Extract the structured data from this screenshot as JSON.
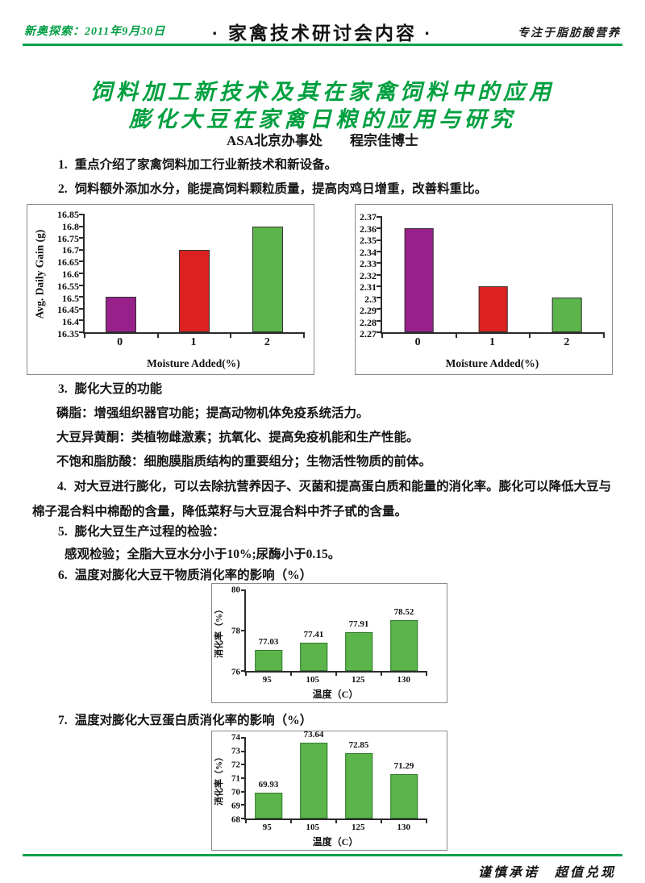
{
  "header": {
    "left": "新奥探索：2011年9月30日",
    "center": "· 家禽技术研讨会内容 ·",
    "right": "专注于脂肪酸营养"
  },
  "title": {
    "line1": "饲料加工新技术及其在家禽饲料中的应用",
    "line2": "膨化大豆在家禽日粮的应用与研究",
    "byline": "ASA北京办事处　　程宗佳博士"
  },
  "items": {
    "i1_num": "1.",
    "i1": "重点介绍了家禽饲料加工行业新技术和新设备。",
    "i2_num": "2.",
    "i2": "饲料额外添加水分，能提高饲料颗粒质量，提高肉鸡日增重，改善料重比。",
    "i3_num": "3.",
    "i3": "膨化大豆的功能",
    "i3_sub1": "磷脂：增强组织器官功能；提高动物机体免疫系统活力。",
    "i3_sub2": "大豆异黄酮：类植物雌激素；抗氧化、提高免疫机能和生产性能。",
    "i3_sub3": "不饱和脂肪酸：细胞膜脂质结构的重要组分；生物活性物质的前体。",
    "i4_num": "4.",
    "i4": "对大豆进行膨化，可以去除抗营养因子、灭菌和提高蛋白质和能量的消化率。膨化可以降低大豆与棉子混合料中棉酚的含量，降低菜籽与大豆混合料中芥子甙的含量。",
    "i5_num": "5.",
    "i5": "膨化大豆生产过程的检验：",
    "i5_sub": "感观检验；全脂大豆水分小于10%;尿酶小于0.15。",
    "i6_num": "6.",
    "i6": "温度对膨化大豆干物质消化率的影响（%）",
    "i7_num": "7.",
    "i7": "温度对膨化大豆蛋白质消化率的影响（%）"
  },
  "footer": {
    "slogan": "谨慎承诺　超值兑现"
  },
  "colors": {
    "accent_green": "#00A14B",
    "title_green": "#00A040",
    "bar_purple": "#97208A",
    "bar_red": "#DB2220",
    "bar_green": "#5CB54A"
  },
  "chart_data": [
    {
      "type": "bar",
      "name": "avg-daily-gain-vs-moisture",
      "categories": [
        "0",
        "1",
        "2"
      ],
      "values": [
        16.5,
        16.7,
        16.8
      ],
      "ylim": [
        16.35,
        16.85
      ],
      "ytick_step": 0.05,
      "xlabel": "Moisture Added(%)",
      "ylabel": "Avg. Daily Gain (g)",
      "bar_colors": [
        "#97208A",
        "#DB2220",
        "#5CB54A"
      ],
      "bar_border": "#333333",
      "bar_ratio": 0.42,
      "grid": false,
      "legend": false
    },
    {
      "type": "bar",
      "name": "feed-to-gain-ratio-vs-moisture",
      "categories": [
        "0",
        "1",
        "2"
      ],
      "values": [
        2.36,
        2.31,
        2.3
      ],
      "ylim": [
        2.27,
        2.37
      ],
      "ytick_step": 0.01,
      "xlabel": "Moisture Added(%)",
      "ylabel": "",
      "bar_colors": [
        "#97208A",
        "#DB2220",
        "#5CB54A"
      ],
      "bar_border": "#333333",
      "bar_ratio": 0.4,
      "grid": false,
      "legend": false
    },
    {
      "type": "bar",
      "name": "dry-matter-digestibility-vs-temperature",
      "categories": [
        "95",
        "105",
        "125",
        "130"
      ],
      "values": [
        77.03,
        77.41,
        77.91,
        78.52
      ],
      "value_labels": [
        "77.03",
        "77.41",
        "77.91",
        "78.52"
      ],
      "ylim": [
        76,
        80
      ],
      "ytick_step": 2,
      "xlabel": "温度（C）",
      "ylabel": "消化率（%）",
      "bar_color": "#5CB54A",
      "bar_border": "#2F7A2F",
      "bar_ratio": 0.6,
      "grid": false,
      "legend": false
    },
    {
      "type": "bar",
      "name": "protein-digestibility-vs-temperature",
      "categories": [
        "95",
        "105",
        "125",
        "130"
      ],
      "values": [
        69.93,
        73.64,
        72.85,
        71.29
      ],
      "value_labels": [
        "69.93",
        "73.64",
        "72.85",
        "71.29"
      ],
      "ylim": [
        68,
        74
      ],
      "ytick_step": 1,
      "xlabel": "温度（C）",
      "ylabel": "消化率（%）",
      "bar_color": "#5CB54A",
      "bar_border": "#2F7A2F",
      "bar_ratio": 0.6,
      "grid": false,
      "legend": false
    }
  ]
}
